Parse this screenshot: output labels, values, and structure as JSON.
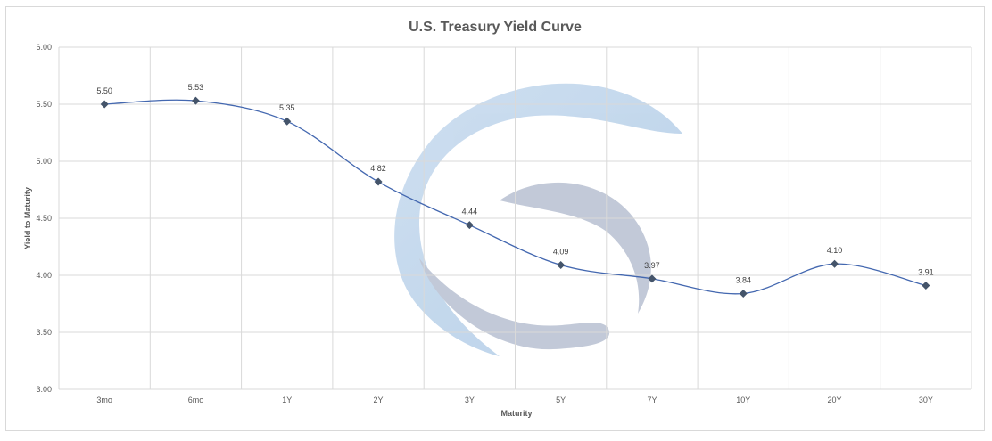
{
  "chart_data": {
    "type": "line",
    "title": "U.S. Treasury Yield Curve",
    "xlabel": "Maturity",
    "ylabel": "Yield to Maturity",
    "categories": [
      "3mo",
      "6mo",
      "1Y",
      "2Y",
      "3Y",
      "5Y",
      "7Y",
      "10Y",
      "20Y",
      "30Y"
    ],
    "values": [
      5.5,
      5.53,
      5.35,
      4.82,
      4.44,
      4.09,
      3.97,
      3.84,
      4.1,
      3.91
    ],
    "data_labels": [
      "5.50",
      "5.53",
      "5.35",
      "4.82",
      "4.44",
      "4.09",
      "3.97",
      "3.84",
      "4.10",
      "3.91"
    ],
    "ylim": [
      3.0,
      6.0
    ],
    "yticks": [
      "3.00",
      "3.50",
      "4.00",
      "4.50",
      "5.00",
      "5.50",
      "6.00"
    ],
    "grid": true,
    "smooth": true,
    "line_color": "#4468b0",
    "marker_color": "#44546a",
    "marker": "diamond"
  }
}
